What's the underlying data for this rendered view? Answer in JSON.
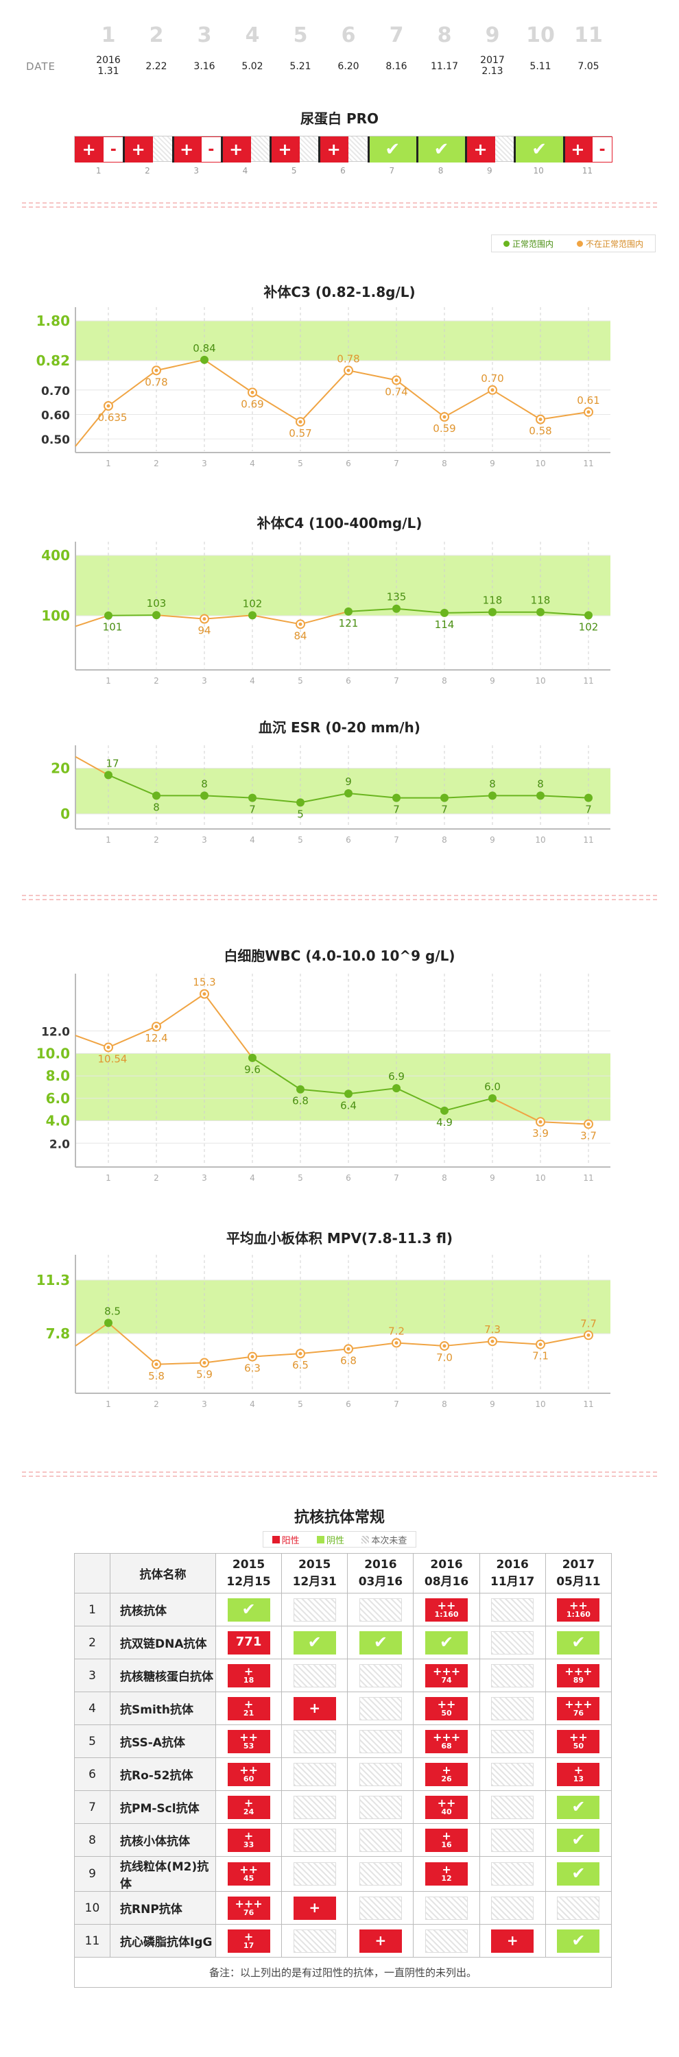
{
  "header": {
    "date_label": "DATE",
    "visits": [
      {
        "num": "1",
        "date": "2016\n1.31"
      },
      {
        "num": "2",
        "date": "2.22"
      },
      {
        "num": "3",
        "date": "3.16"
      },
      {
        "num": "4",
        "date": "5.02"
      },
      {
        "num": "5",
        "date": "5.21"
      },
      {
        "num": "6",
        "date": "6.20"
      },
      {
        "num": "7",
        "date": "8.16"
      },
      {
        "num": "8",
        "date": "11.17"
      },
      {
        "num": "9",
        "date": "2017\n2.13"
      },
      {
        "num": "10",
        "date": "5.11"
      },
      {
        "num": "11",
        "date": "7.05"
      }
    ]
  },
  "pro": {
    "title": "尿蛋白 PRO",
    "cells": [
      "+-",
      "+",
      "+-",
      "+",
      "+",
      "+",
      "ok",
      "ok",
      "+",
      "ok",
      "+-"
    ],
    "indices": [
      "1",
      "2",
      "3",
      "4",
      "5",
      "6",
      "7",
      "8",
      "9",
      "10",
      "11"
    ]
  },
  "legend": {
    "normal": "正常范围内",
    "abnormal": "不在正常范围内"
  },
  "colors": {
    "normal_band": "#d6f5a4",
    "green": "#6ab51f",
    "orange": "#f0a443",
    "red": "#e31b2b",
    "ok_green": "#a6e34d"
  },
  "chart_data": [
    {
      "type": "line",
      "title": "补体C3  (0.82-1.8g/L)",
      "x": [
        "1",
        "2",
        "3",
        "4",
        "5",
        "6",
        "7",
        "8",
        "9",
        "10",
        "11"
      ],
      "values": [
        0.635,
        0.78,
        0.84,
        0.69,
        0.57,
        0.78,
        0.74,
        0.59,
        0.7,
        0.58,
        0.61
      ],
      "labels": [
        "0.635",
        "0.78",
        "0.84",
        "0.69",
        "0.57",
        "0.78",
        "0.74",
        "0.59",
        "0.70",
        "0.58",
        "0.61"
      ],
      "normal": [
        false,
        false,
        true,
        false,
        false,
        false,
        false,
        false,
        false,
        false,
        false
      ],
      "range": [
        0.82,
        1.8
      ],
      "yticks": [
        {
          "v": 1.8,
          "t": "1.80",
          "hl": true
        },
        {
          "v": 0.82,
          "t": "0.82",
          "hl": true
        },
        {
          "v": 0.7,
          "t": "0.70"
        },
        {
          "v": 0.6,
          "t": "0.60"
        },
        {
          "v": 0.5,
          "t": "0.50"
        }
      ]
    },
    {
      "type": "line",
      "title": "补体C4 (100-400mg/L)",
      "x": [
        "1",
        "2",
        "3",
        "4",
        "5",
        "6",
        "7",
        "8",
        "9",
        "10",
        "11"
      ],
      "values": [
        101,
        103,
        94,
        102,
        84,
        121,
        135,
        114,
        118,
        118,
        102
      ],
      "labels": [
        "101",
        "103",
        "94",
        "102",
        "84",
        "121",
        "135",
        "114",
        "118",
        "118",
        "102"
      ],
      "normal": [
        true,
        true,
        false,
        true,
        false,
        true,
        true,
        true,
        true,
        true,
        true
      ],
      "range": [
        100,
        400
      ],
      "yticks": [
        {
          "v": 400,
          "t": "400",
          "hl": true
        },
        {
          "v": 100,
          "t": "100",
          "hl": true
        }
      ]
    },
    {
      "type": "line",
      "title": "血沉 ESR (0-20 mm/h)",
      "x": [
        "1",
        "2",
        "3",
        "4",
        "5",
        "6",
        "7",
        "8",
        "9",
        "10",
        "11"
      ],
      "values": [
        17,
        8,
        8,
        7,
        5,
        9,
        7,
        7,
        8,
        8,
        7
      ],
      "labels": [
        "17",
        "8",
        "8",
        "7",
        "5",
        "9",
        "7",
        "7",
        "8",
        "8",
        "7"
      ],
      "normal": [
        true,
        true,
        true,
        true,
        true,
        true,
        true,
        true,
        true,
        true,
        true
      ],
      "range": [
        0,
        20
      ],
      "yticks": [
        {
          "v": 20,
          "t": "20",
          "hl": true
        },
        {
          "v": 0,
          "t": "0",
          "hl": true
        }
      ]
    },
    {
      "type": "line",
      "title": "白细胞WBC  (4.0-10.0 10^9 g/L)",
      "x": [
        "1",
        "2",
        "3",
        "4",
        "5",
        "6",
        "7",
        "8",
        "9",
        "10",
        "11"
      ],
      "values": [
        10.54,
        12.4,
        15.3,
        9.6,
        6.8,
        6.4,
        6.9,
        4.9,
        6.0,
        3.9,
        3.7
      ],
      "labels": [
        "10.54",
        "12.4",
        "15.3",
        "9.6",
        "6.8",
        "6.4",
        "6.9",
        "4.9",
        "6.0",
        "3.9",
        "3.7"
      ],
      "normal": [
        false,
        false,
        false,
        true,
        true,
        true,
        true,
        true,
        true,
        false,
        false
      ],
      "range": [
        4.0,
        10.0
      ],
      "yticks": [
        {
          "v": 12,
          "t": "12.0"
        },
        {
          "v": 10,
          "t": "10.0",
          "hl": true
        },
        {
          "v": 8,
          "t": "8.0",
          "hl": true
        },
        {
          "v": 6,
          "t": "6.0",
          "hl": true
        },
        {
          "v": 4,
          "t": "4.0",
          "hl": true
        },
        {
          "v": 2,
          "t": "2.0"
        }
      ]
    },
    {
      "type": "line",
      "title": "平均血小板体积 MPV(7.8-11.3 fl)",
      "x": [
        "1",
        "2",
        "3",
        "4",
        "5",
        "6",
        "7",
        "8",
        "9",
        "10",
        "11"
      ],
      "values": [
        8.5,
        5.8,
        5.9,
        6.3,
        6.5,
        6.8,
        7.2,
        7.0,
        7.3,
        7.1,
        7.7
      ],
      "labels": [
        "8.5",
        "5.8",
        "5.9",
        "6.3",
        "6.5",
        "6.8",
        "7.2",
        "7.0",
        "7.3",
        "7.1",
        "7.7"
      ],
      "normal": [
        true,
        false,
        false,
        false,
        false,
        false,
        false,
        false,
        false,
        false,
        false
      ],
      "range": [
        7.8,
        11.3
      ],
      "yticks": [
        {
          "v": 11.3,
          "t": "11.3",
          "hl": true
        },
        {
          "v": 7.8,
          "t": "7.8",
          "hl": true
        }
      ]
    }
  ],
  "ana": {
    "title": "抗核抗体常规",
    "legend": {
      "pos": "阳性",
      "neg": "阴性",
      "na": "本次未查"
    },
    "head_name": "抗体名称",
    "dates": [
      [
        "2015",
        "12月15"
      ],
      [
        "2015",
        "12月31"
      ],
      [
        "2016",
        "03月16"
      ],
      [
        "2016",
        "08月16"
      ],
      [
        "2016",
        "11月17"
      ],
      [
        "2017",
        "05月11"
      ]
    ],
    "rows": [
      {
        "i": "1",
        "name": "抗核抗体",
        "c": [
          [
            "ok"
          ],
          [
            "na"
          ],
          [
            "na"
          ],
          [
            "pos",
            "++",
            "1:160"
          ],
          [
            "na"
          ],
          [
            "pos",
            "++",
            "1:160"
          ]
        ]
      },
      {
        "i": "2",
        "name": "抗双链DNA抗体",
        "c": [
          [
            "pos",
            "771",
            ""
          ],
          [
            "ok"
          ],
          [
            "ok"
          ],
          [
            "ok"
          ],
          [
            "na"
          ],
          [
            "ok"
          ]
        ]
      },
      {
        "i": "3",
        "name": "抗核糖核蛋白抗体",
        "c": [
          [
            "pos",
            "+",
            "18"
          ],
          [
            "na"
          ],
          [
            "na"
          ],
          [
            "pos",
            "+++",
            "74"
          ],
          [
            "na"
          ],
          [
            "pos",
            "+++",
            "89"
          ]
        ]
      },
      {
        "i": "4",
        "name": "抗Smith抗体",
        "c": [
          [
            "pos",
            "+",
            "21"
          ],
          [
            "pos",
            "+",
            ""
          ],
          [
            "na"
          ],
          [
            "pos",
            "++",
            "50"
          ],
          [
            "na"
          ],
          [
            "pos",
            "+++",
            "76"
          ]
        ]
      },
      {
        "i": "5",
        "name": "抗SS-A抗体",
        "c": [
          [
            "pos",
            "++",
            "53"
          ],
          [
            "na"
          ],
          [
            "na"
          ],
          [
            "pos",
            "+++",
            "68"
          ],
          [
            "na"
          ],
          [
            "pos",
            "++",
            "50"
          ]
        ]
      },
      {
        "i": "6",
        "name": "抗Ro-52抗体",
        "c": [
          [
            "pos",
            "++",
            "60"
          ],
          [
            "na"
          ],
          [
            "na"
          ],
          [
            "pos",
            "+",
            "26"
          ],
          [
            "na"
          ],
          [
            "pos",
            "+",
            "13"
          ]
        ]
      },
      {
        "i": "7",
        "name": "抗PM-Scl抗体",
        "c": [
          [
            "pos",
            "+",
            "24"
          ],
          [
            "na"
          ],
          [
            "na"
          ],
          [
            "pos",
            "++",
            "40"
          ],
          [
            "na"
          ],
          [
            "ok"
          ]
        ]
      },
      {
        "i": "8",
        "name": "抗核小体抗体",
        "c": [
          [
            "pos",
            "+",
            "33"
          ],
          [
            "na"
          ],
          [
            "na"
          ],
          [
            "pos",
            "+",
            "16"
          ],
          [
            "na"
          ],
          [
            "ok"
          ]
        ]
      },
      {
        "i": "9",
        "name": "抗线粒体(M2)抗体",
        "c": [
          [
            "pos",
            "++",
            "45"
          ],
          [
            "na"
          ],
          [
            "na"
          ],
          [
            "pos",
            "+",
            "12"
          ],
          [
            "na"
          ],
          [
            "ok"
          ]
        ]
      },
      {
        "i": "10",
        "name": "抗RNP抗体",
        "c": [
          [
            "pos",
            "+++",
            "76"
          ],
          [
            "pos",
            "+",
            ""
          ],
          [
            "na"
          ],
          [
            "na"
          ],
          [
            "na"
          ],
          [
            "na"
          ]
        ]
      },
      {
        "i": "11",
        "name": "抗心磷脂抗体IgG",
        "c": [
          [
            "pos",
            "+",
            "17"
          ],
          [
            "na"
          ],
          [
            "pos",
            "+",
            ""
          ],
          [
            "na"
          ],
          [
            "pos",
            "+",
            ""
          ],
          [
            "ok"
          ]
        ]
      }
    ],
    "note": "备注：以上列出的是有过阳性的抗体，一直阴性的未列出。"
  }
}
